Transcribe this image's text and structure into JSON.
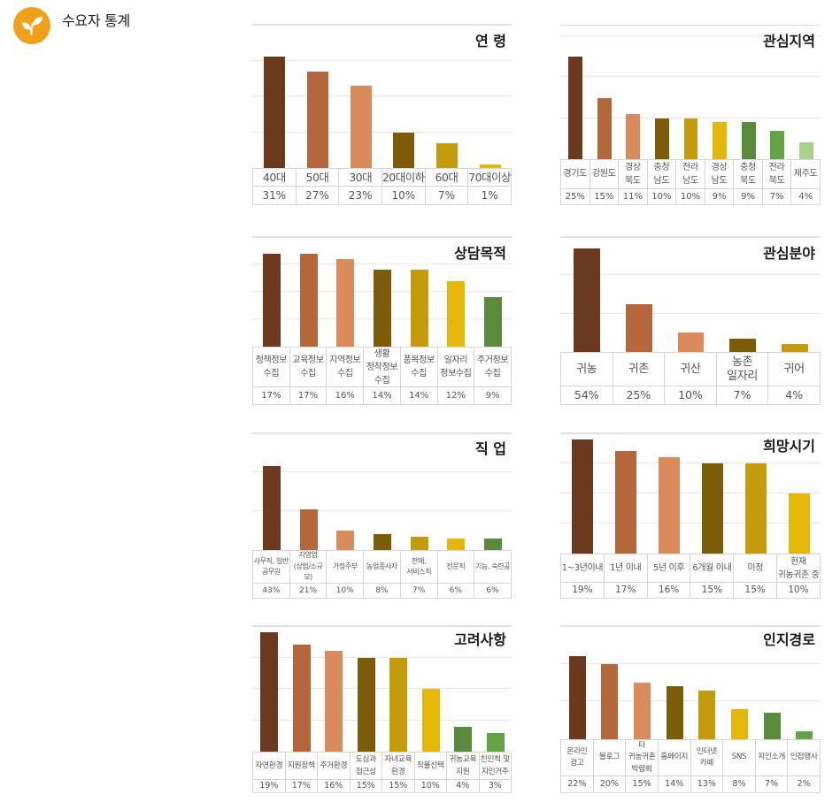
{
  "header": {
    "title": "수요자 통계",
    "icon": "sprout-icon",
    "icon_color": "#F0A11A"
  },
  "palette": [
    "#6B3A1E",
    "#B5663A",
    "#D98B5C",
    "#7B5C08",
    "#C59A0B",
    "#E6B70B",
    "#5A8A3B",
    "#64A448",
    "#A9D08E"
  ],
  "chart_data": [
    {
      "type": "bar",
      "title": "연 령",
      "categories": [
        "40대",
        "50대",
        "30대",
        "20대이하",
        "60대",
        "70대이상"
      ],
      "values": [
        31,
        27,
        23,
        10,
        7,
        1
      ],
      "unit": "%",
      "ylim": [
        0,
        40
      ],
      "grid_step": 10,
      "grid": true
    },
    {
      "type": "bar",
      "title": "관심지역",
      "categories": [
        "경기도",
        "강원도",
        "경상\n북도",
        "충청\n남도",
        "전라\n남도",
        "경상\n남도",
        "충청\n북도",
        "전라\n북도",
        "제주도"
      ],
      "values": [
        25,
        15,
        11,
        10,
        10,
        9,
        9,
        7,
        4
      ],
      "unit": "%",
      "ylim": [
        0,
        30
      ],
      "grid_step": 10,
      "grid": true
    },
    {
      "type": "bar",
      "title": "상담목적",
      "categories": [
        "정책정보\n수집",
        "교육정보\n수집",
        "지역정보\n수집",
        "생활\n정착정보\n수집",
        "품목정보\n수집",
        "일자리\n정보수집",
        "주거정보\n수집"
      ],
      "values": [
        17,
        17,
        16,
        14,
        14,
        12,
        9
      ],
      "unit": "%",
      "ylim": [
        0,
        20
      ],
      "grid_step": 5,
      "grid": true
    },
    {
      "type": "bar",
      "title": "관심분야",
      "categories": [
        "귀농",
        "귀촌",
        "귀산",
        "농촌\n일자리",
        "귀어"
      ],
      "values": [
        54,
        25,
        10,
        7,
        4
      ],
      "unit": "%",
      "ylim": [
        0,
        60
      ],
      "grid_step": 20,
      "grid": true
    },
    {
      "type": "bar",
      "title": "직 업",
      "categories": [
        "사무직, 일반\n공무원",
        "자영업\n(상업/소규\n모)",
        "가정주부",
        "농업종사자",
        "판매,\n서비스직",
        "전문직",
        "기능, 숙련공"
      ],
      "values": [
        43,
        21,
        10,
        8,
        7,
        6,
        6
      ],
      "unit": "%",
      "ylim": [
        0,
        60
      ],
      "grid_step": 20,
      "grid": true
    },
    {
      "type": "bar",
      "title": "희망시기",
      "categories": [
        "1~3년이내",
        "1년 이내",
        "5년 이후",
        "6개월 이내",
        "미정",
        "현재\n귀농귀촌 중"
      ],
      "values": [
        19,
        17,
        16,
        15,
        15,
        10
      ],
      "unit": "%",
      "ylim": [
        0,
        20
      ],
      "grid_step": 5,
      "grid": true
    },
    {
      "type": "bar",
      "title": "고려사항",
      "categories": [
        "자연환경",
        "지원정책",
        "주거환경",
        "도심과\n접근성",
        "자녀교육\n환경",
        "작물선택",
        "귀농교육\n지원",
        "친인척 및\n지인거주"
      ],
      "values": [
        19,
        17,
        16,
        15,
        15,
        10,
        4,
        3
      ],
      "unit": "%",
      "ylim": [
        0,
        20
      ],
      "grid_step": 5,
      "grid": true
    },
    {
      "type": "bar",
      "title": "인지경로",
      "categories": [
        "온라인\n광고",
        "블로그",
        "타\n귀농귀촌\n박람회",
        "홈페이지",
        "인터넷\n카페",
        "SNS",
        "지인소개",
        "인접행사"
      ],
      "values": [
        22,
        20,
        15,
        14,
        13,
        8,
        7,
        2
      ],
      "unit": "%",
      "ylim": [
        0,
        30
      ],
      "grid_step": 10,
      "grid": true
    }
  ]
}
